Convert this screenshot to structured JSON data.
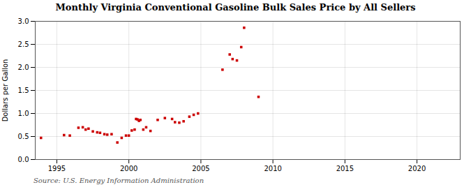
{
  "chart_data": {
    "type": "scatter",
    "title": "Monthly Virginia Conventional Gasoline Bulk Sales Price by All Sellers",
    "ylabel": "Dollars per Gallon",
    "source": "Source: U.S. Energy Information Administration",
    "color": "#CC0000",
    "marker": "square",
    "grid": true,
    "xlim": [
      1993.5,
      2023
    ],
    "ylim": [
      0.0,
      3.0
    ],
    "xticks": [
      1995,
      2000,
      2005,
      2010,
      2015,
      2020
    ],
    "yticks": [
      {
        "value": 0.0,
        "label": "0.0"
      },
      0.5,
      {
        "value": 1.0,
        "label": "1.0"
      },
      1.5,
      {
        "value": 2.0,
        "label": "2.0"
      },
      2.5,
      {
        "value": 3.0,
        "label": "3.0"
      }
    ],
    "x": [
      1993.9,
      1995.5,
      1995.9,
      1996.5,
      1996.8,
      1997.0,
      1997.2,
      1997.5,
      1997.8,
      1998.0,
      1998.3,
      1998.5,
      1998.8,
      1999.2,
      1999.5,
      1999.8,
      2000.0,
      2000.2,
      2000.4,
      2000.5,
      2000.6,
      2000.7,
      2000.8,
      2001.0,
      2001.2,
      2001.5,
      2002.0,
      2002.5,
      2003.0,
      2003.2,
      2003.5,
      2003.8,
      2004.2,
      2004.5,
      2004.8,
      2006.5,
      2007.0,
      2007.2,
      2007.5,
      2007.8,
      2008.0,
      2009.0
    ],
    "values": [
      0.47,
      0.53,
      0.52,
      0.69,
      0.7,
      0.65,
      0.67,
      0.61,
      0.59,
      0.58,
      0.55,
      0.54,
      0.55,
      0.37,
      0.47,
      0.52,
      0.52,
      0.63,
      0.65,
      0.88,
      0.87,
      0.84,
      0.86,
      0.65,
      0.7,
      0.62,
      0.86,
      0.9,
      0.88,
      0.81,
      0.8,
      0.83,
      0.93,
      0.97,
      1.0,
      1.95,
      2.28,
      2.18,
      2.15,
      2.44,
      2.86,
      1.36
    ]
  }
}
